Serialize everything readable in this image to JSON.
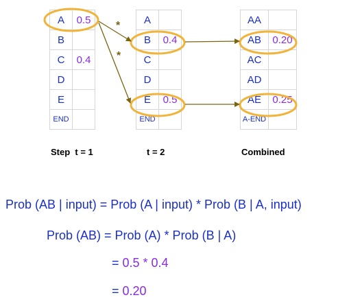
{
  "columns": [
    {
      "caption": "Step  t = 1",
      "rows": [
        {
          "label": "A",
          "value": "0.5"
        },
        {
          "label": "B",
          "value": ""
        },
        {
          "label": "C",
          "value": "0.4"
        },
        {
          "label": "D",
          "value": ""
        },
        {
          "label": "E",
          "value": ""
        },
        {
          "label": "END",
          "value": ""
        }
      ]
    },
    {
      "caption": "t = 2",
      "rows": [
        {
          "label": "A",
          "value": ""
        },
        {
          "label": "B",
          "value": "0.4"
        },
        {
          "label": "C",
          "value": ""
        },
        {
          "label": "D",
          "value": ""
        },
        {
          "label": "E",
          "value": "0.5"
        },
        {
          "label": "END",
          "value": ""
        }
      ]
    },
    {
      "caption": "Combined",
      "rows": [
        {
          "label": "AA",
          "value": ""
        },
        {
          "label": "AB",
          "value": "0.20"
        },
        {
          "label": "AC",
          "value": ""
        },
        {
          "label": "AD",
          "value": ""
        },
        {
          "label": "AE",
          "value": "0.25"
        },
        {
          "label": "A-END",
          "value": ""
        }
      ]
    }
  ],
  "arrow_symbols": [
    "*",
    "*"
  ],
  "equations": {
    "line1": {
      "text": "Prob (AB | input) = Prob (A | input) * Prob (B | A, input)"
    },
    "line2": {
      "text": "Prob (AB) = Prob (A) * Prob (B | A)"
    },
    "line3": {
      "prefix": "= ",
      "value": "0.5 * 0.4"
    },
    "line4": {
      "prefix": "= ",
      "value": "0.20"
    }
  },
  "colors": {
    "highlight": "#f0b43a",
    "arrow": "#7a6412",
    "label": "#1a2fc8",
    "value": "#8a2be2",
    "grid": "#d6d6d6"
  }
}
